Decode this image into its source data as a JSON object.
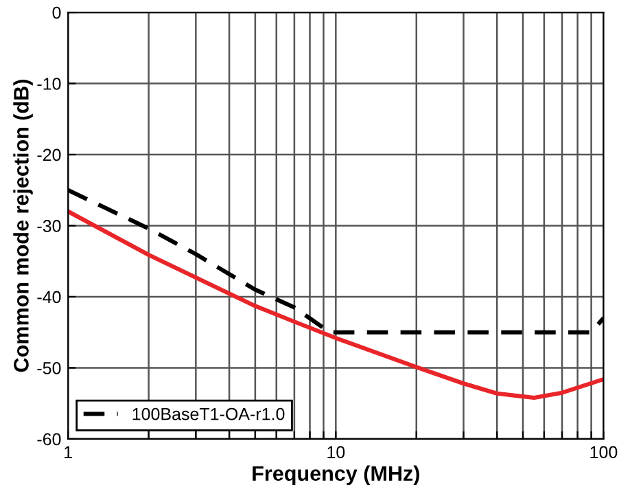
{
  "chart_data": {
    "type": "line",
    "xlabel": "Frequency (MHz)",
    "ylabel": "Common mode rejection (dB)",
    "log": "x",
    "xlim": [
      1,
      100
    ],
    "xticks": [
      1,
      {
        "value": 2,
        "label": null
      },
      {
        "value": 3,
        "label": null
      },
      {
        "value": 4,
        "label": null
      },
      {
        "value": 5,
        "label": null
      },
      {
        "value": 6,
        "label": null
      },
      {
        "value": 7,
        "label": null
      },
      {
        "value": 8,
        "label": null
      },
      {
        "value": 9,
        "label": null
      },
      10,
      {
        "value": 20,
        "label": null
      },
      {
        "value": 30,
        "label": null
      },
      {
        "value": 40,
        "label": null
      },
      {
        "value": 50,
        "label": null
      },
      {
        "value": 60,
        "label": null
      },
      {
        "value": 70,
        "label": null
      },
      {
        "value": 80,
        "label": null
      },
      {
        "value": 90,
        "label": null
      },
      100
    ],
    "ylim": [
      -60,
      0
    ],
    "yticks": [
      -60,
      -50,
      -40,
      -30,
      -20,
      -10,
      0
    ],
    "grid": true,
    "legend": "bottom left",
    "series": [
      {
        "color": "#e8262a",
        "line_style": "solid",
        "x": [
          1,
          2,
          3,
          5,
          7,
          10,
          20,
          30,
          40,
          55,
          70,
          100
        ],
        "values": [
          -28,
          -34.1,
          -37.3,
          -41.3,
          -43.5,
          -45.8,
          -49.9,
          -52.2,
          -53.6,
          -54.2,
          -53.5,
          -51.6
        ]
      },
      {
        "name": "100BaseT1-OA-r1.0",
        "color": "#000000",
        "line_style": "dashed",
        "x": [
          1,
          2,
          3,
          5,
          7,
          9.5,
          90,
          100
        ],
        "values": [
          -25,
          -30.4,
          -34,
          -39,
          -41.5,
          -45,
          -45,
          -43
        ]
      }
    ]
  }
}
